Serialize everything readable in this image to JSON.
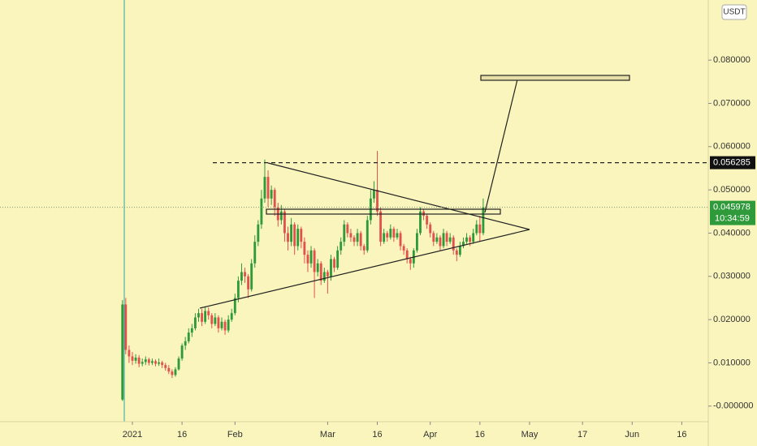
{
  "chart_data": {
    "type": "candlestick",
    "currency": "USDT",
    "x": [
      -3,
      -2,
      -1,
      0,
      1,
      2,
      3,
      4,
      5,
      6,
      7,
      8,
      9,
      10,
      11,
      12,
      13,
      14,
      15,
      16,
      17,
      18,
      19,
      20,
      21,
      22,
      23,
      24,
      25,
      26,
      27,
      28,
      29,
      30,
      31,
      32,
      33,
      34,
      35,
      36,
      37,
      38,
      39,
      40,
      41,
      42,
      43,
      44,
      45,
      46,
      47,
      48,
      49,
      50,
      51,
      52,
      53,
      54,
      55,
      56,
      57,
      58,
      59,
      60,
      61,
      62,
      63,
      64,
      65,
      66,
      67,
      68,
      69,
      70,
      71,
      72,
      73,
      74,
      75,
      76,
      77,
      78,
      79,
      80,
      81,
      82,
      83,
      84,
      85,
      86,
      87,
      88,
      89,
      90,
      91,
      92,
      93,
      94,
      95,
      96,
      97,
      98,
      99,
      100,
      101,
      102,
      103,
      104,
      105,
      106
    ],
    "open": [
      0.0015,
      0.0235,
      0.013,
      0.0115,
      0.0105,
      0.0112,
      0.0098,
      0.0102,
      0.0108,
      0.01,
      0.0104,
      0.0098,
      0.0101,
      0.0095,
      0.0088,
      0.008,
      0.0072,
      0.0085,
      0.011,
      0.014,
      0.015,
      0.017,
      0.018,
      0.0205,
      0.0215,
      0.0195,
      0.022,
      0.021,
      0.019,
      0.0205,
      0.018,
      0.0195,
      0.0175,
      0.02,
      0.0215,
      0.025,
      0.029,
      0.031,
      0.03,
      0.027,
      0.033,
      0.038,
      0.042,
      0.048,
      0.053,
      0.048,
      0.05,
      0.046,
      0.043,
      0.045,
      0.04,
      0.038,
      0.042,
      0.037,
      0.041,
      0.038,
      0.035,
      0.033,
      0.036,
      0.031,
      0.033,
      0.029,
      0.031,
      0.03,
      0.034,
      0.032,
      0.036,
      0.038,
      0.042,
      0.04,
      0.039,
      0.038,
      0.04,
      0.037,
      0.036,
      0.043,
      0.048,
      0.05,
      0.045,
      0.038,
      0.04,
      0.039,
      0.041,
      0.039,
      0.04,
      0.037,
      0.036,
      0.034,
      0.033,
      0.036,
      0.04,
      0.045,
      0.044,
      0.042,
      0.04,
      0.038,
      0.039,
      0.037,
      0.04,
      0.038,
      0.039,
      0.036,
      0.035,
      0.037,
      0.038,
      0.039,
      0.038,
      0.04,
      0.042,
      0.04
    ],
    "high": [
      0.0245,
      0.025,
      0.014,
      0.0125,
      0.012,
      0.0118,
      0.011,
      0.0115,
      0.0112,
      0.011,
      0.0108,
      0.011,
      0.0105,
      0.01,
      0.0095,
      0.0085,
      0.009,
      0.0115,
      0.0145,
      0.016,
      0.018,
      0.019,
      0.0215,
      0.0225,
      0.0225,
      0.023,
      0.0228,
      0.0215,
      0.0215,
      0.021,
      0.0205,
      0.02,
      0.021,
      0.0225,
      0.026,
      0.03,
      0.033,
      0.032,
      0.0305,
      0.034,
      0.0395,
      0.043,
      0.05,
      0.057,
      0.0545,
      0.051,
      0.0505,
      0.047,
      0.0465,
      0.0455,
      0.0415,
      0.0435,
      0.0425,
      0.042,
      0.0415,
      0.039,
      0.036,
      0.037,
      0.0365,
      0.034,
      0.0335,
      0.032,
      0.0315,
      0.035,
      0.0345,
      0.037,
      0.039,
      0.043,
      0.0425,
      0.041,
      0.0395,
      0.041,
      0.0405,
      0.0375,
      0.044,
      0.05,
      0.052,
      0.059,
      0.046,
      0.041,
      0.0405,
      0.042,
      0.0415,
      0.041,
      0.0405,
      0.0375,
      0.0365,
      0.0345,
      0.0365,
      0.041,
      0.046,
      0.0455,
      0.0445,
      0.0425,
      0.0405,
      0.04,
      0.0395,
      0.041,
      0.0405,
      0.04,
      0.0395,
      0.0365,
      0.038,
      0.039,
      0.04,
      0.0395,
      0.041,
      0.043,
      0.044,
      0.048
    ],
    "low": [
      0.0012,
      0.012,
      0.01,
      0.0095,
      0.0098,
      0.009,
      0.0092,
      0.0095,
      0.0094,
      0.0095,
      0.0092,
      0.0093,
      0.0088,
      0.0082,
      0.0074,
      0.0065,
      0.0068,
      0.0082,
      0.0105,
      0.013,
      0.0145,
      0.016,
      0.0175,
      0.0195,
      0.0185,
      0.019,
      0.02,
      0.018,
      0.0185,
      0.017,
      0.0175,
      0.0165,
      0.017,
      0.0195,
      0.021,
      0.024,
      0.028,
      0.0285,
      0.025,
      0.0265,
      0.032,
      0.037,
      0.041,
      0.047,
      0.046,
      0.0465,
      0.044,
      0.0415,
      0.042,
      0.038,
      0.036,
      0.037,
      0.035,
      0.036,
      0.0365,
      0.033,
      0.031,
      0.032,
      0.025,
      0.03,
      0.028,
      0.0285,
      0.026,
      0.029,
      0.031,
      0.0315,
      0.035,
      0.037,
      0.039,
      0.038,
      0.037,
      0.037,
      0.036,
      0.035,
      0.0355,
      0.042,
      0.047,
      0.044,
      0.037,
      0.0375,
      0.038,
      0.0385,
      0.038,
      0.0385,
      0.036,
      0.035,
      0.033,
      0.0315,
      0.032,
      0.0355,
      0.0395,
      0.043,
      0.041,
      0.039,
      0.037,
      0.0375,
      0.036,
      0.0365,
      0.037,
      0.0375,
      0.035,
      0.0335,
      0.0345,
      0.0365,
      0.0375,
      0.037,
      0.0375,
      0.0395,
      0.038,
      0.0395
    ],
    "close": [
      0.0235,
      0.013,
      0.0115,
      0.0105,
      0.0112,
      0.0098,
      0.0102,
      0.0108,
      0.01,
      0.0104,
      0.0098,
      0.0101,
      0.0095,
      0.0088,
      0.008,
      0.0072,
      0.0085,
      0.011,
      0.014,
      0.015,
      0.017,
      0.018,
      0.0205,
      0.0215,
      0.0195,
      0.022,
      0.021,
      0.019,
      0.0205,
      0.018,
      0.0195,
      0.0175,
      0.02,
      0.0215,
      0.025,
      0.029,
      0.031,
      0.03,
      0.027,
      0.033,
      0.038,
      0.042,
      0.048,
      0.053,
      0.048,
      0.05,
      0.046,
      0.043,
      0.045,
      0.04,
      0.038,
      0.042,
      0.037,
      0.041,
      0.038,
      0.035,
      0.033,
      0.036,
      0.031,
      0.033,
      0.029,
      0.031,
      0.03,
      0.034,
      0.032,
      0.036,
      0.038,
      0.042,
      0.04,
      0.039,
      0.038,
      0.04,
      0.037,
      0.036,
      0.043,
      0.048,
      0.05,
      0.045,
      0.038,
      0.04,
      0.039,
      0.041,
      0.039,
      0.04,
      0.037,
      0.036,
      0.034,
      0.033,
      0.036,
      0.04,
      0.045,
      0.044,
      0.042,
      0.04,
      0.038,
      0.039,
      0.037,
      0.04,
      0.038,
      0.039,
      0.036,
      0.035,
      0.037,
      0.038,
      0.039,
      0.038,
      0.04,
      0.042,
      0.04,
      0.046
    ],
    "up_color": "#2f9a3a",
    "down_color": "#e0514f",
    "xlim": [
      -40,
      174
    ],
    "xticks": [
      {
        "value": 0,
        "label": "2021"
      },
      {
        "value": 15,
        "label": "16"
      },
      {
        "value": 31,
        "label": "Feb"
      },
      {
        "value": 59,
        "label": "Mar"
      },
      {
        "value": 74,
        "label": "16"
      },
      {
        "value": 90,
        "label": "Apr"
      },
      {
        "value": 105,
        "label": "16"
      },
      {
        "value": 120,
        "label": "May"
      },
      {
        "value": 136,
        "label": "17"
      },
      {
        "value": 151,
        "label": "Jun"
      },
      {
        "value": 166,
        "label": "16"
      }
    ],
    "ylim": [
      -0.0036,
      0.0939
    ],
    "yticks": [
      {
        "value": 0,
        "label": "-0.000000"
      },
      {
        "value": 0.01,
        "label": "0.010000"
      },
      {
        "value": 0.02,
        "label": "0.020000"
      },
      {
        "value": 0.03,
        "label": "0.030000"
      },
      {
        "value": 0.04,
        "label": "0.040000"
      },
      {
        "value": 0.05,
        "label": "0.050000"
      },
      {
        "value": 0.06,
        "label": "0.060000"
      },
      {
        "value": 0.07,
        "label": "0.070000"
      },
      {
        "value": 0.08,
        "label": "0.080000"
      }
    ],
    "level_line": 0.056285,
    "last_price": 0.045978,
    "countdown": "10:34:59"
  }
}
